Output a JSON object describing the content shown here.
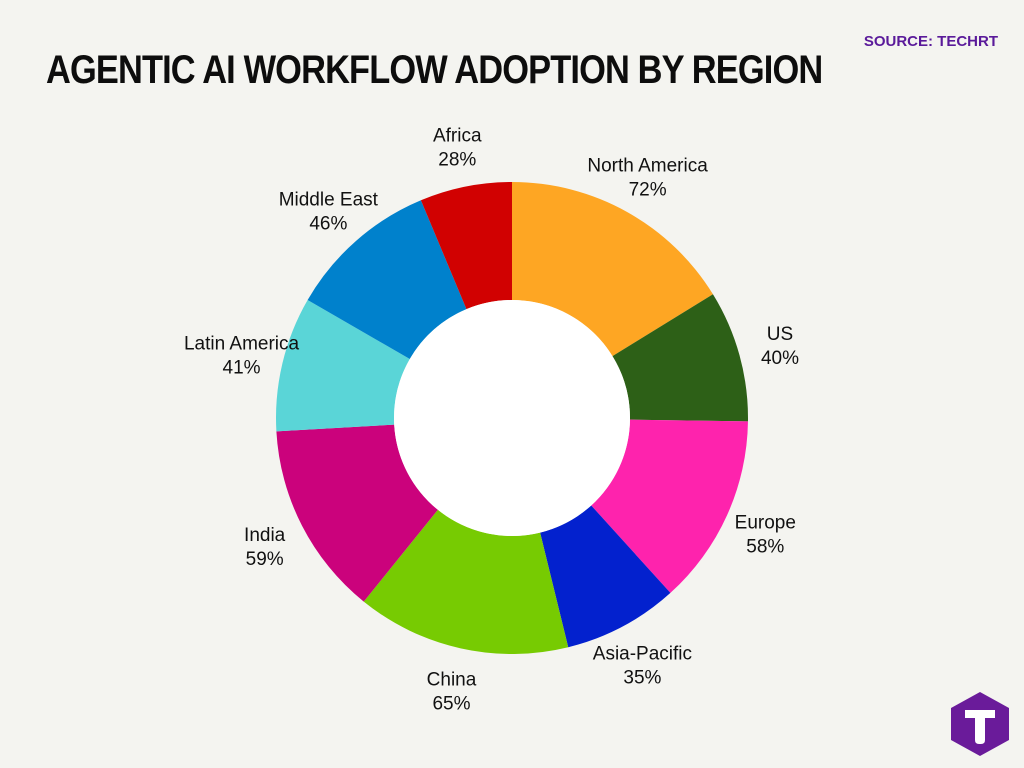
{
  "header": {
    "title": "AGENTIC AI WORKFLOW ADOPTION BY REGION",
    "source": "SOURCE: TECHRT"
  },
  "brand": {
    "logo_icon": "techrt-logo-icon",
    "logo_color": "#6a1b9a"
  },
  "chart_data": {
    "type": "pie",
    "donut": true,
    "legend": "none",
    "categories": [
      "North America",
      "US",
      "Europe",
      "Asia-Pacific",
      "China",
      "India",
      "Latin America",
      "Middle East",
      "Africa"
    ],
    "values": [
      72,
      40,
      58,
      35,
      65,
      59,
      41,
      46,
      28
    ],
    "labels": [
      "72%",
      "40%",
      "58%",
      "35%",
      "65%",
      "59%",
      "41%",
      "46%",
      "28%"
    ],
    "colors": [
      "#fea623",
      "#2d6017",
      "#fe23ad",
      "#0321ce",
      "#77cb02",
      "#cb027c",
      "#5ad5d7",
      "#0081cc",
      "#d10101"
    ]
  }
}
